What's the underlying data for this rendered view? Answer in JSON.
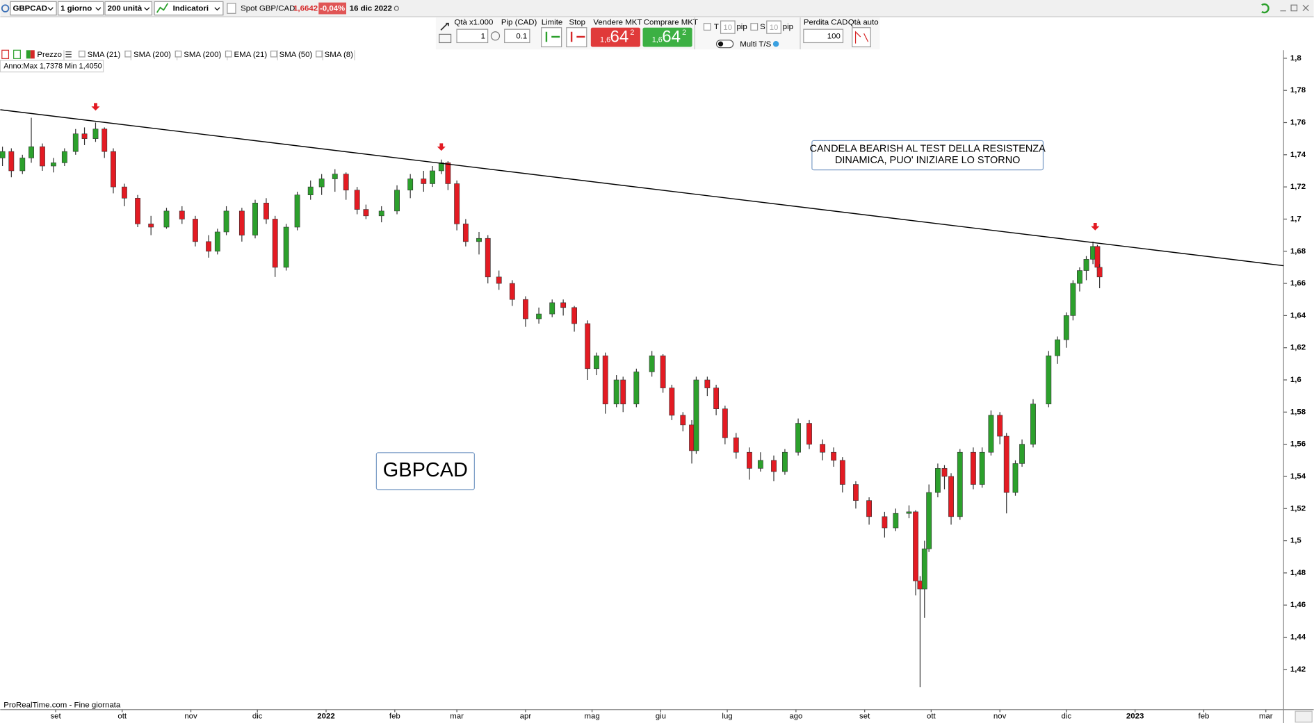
{
  "toolbar": {
    "symbol": "GBPCAD",
    "timeframe": "1 giorno",
    "units": "200 unità",
    "indicators": "Indicatori",
    "instrument": "Spot GBP/CAD",
    "price": "1,6642",
    "change": "-0,04%",
    "date": "16 dic 2022"
  },
  "order_panel": {
    "qty_label": "Qtà x1.000",
    "qty": "1",
    "pip_label": "Pip (CAD)",
    "pip": "0.1",
    "limit": "Limite",
    "stop": "Stop",
    "sell_label": "Vendere MKT",
    "buy_label": "Comprare MKT",
    "sell_price": {
      "prefix": "1,6",
      "big": "64",
      "sup": "2"
    },
    "buy_price": {
      "prefix": "1,6",
      "big": "64",
      "sup": "2"
    },
    "t": "T",
    "t_pips": "10",
    "t_unit": "pip",
    "s": "S",
    "s_pips": "10",
    "s_unit": "pip",
    "multi": "Multi T/S",
    "loss_label": "Perdita CAD",
    "loss": "100",
    "auto_qty": "Qtà auto"
  },
  "indicator_bar": [
    "Prezzo",
    "SMA (21)",
    "SMA (200)",
    "SMA (200)",
    "EMA (21)",
    "SMA (50)",
    "SMA (8)"
  ],
  "year_range": "Anno:Max 1,7378 Min 1,4050",
  "footer": "ProRealTime.com - Fine giornata",
  "chart_data": {
    "type": "candlestick",
    "title": "GBPCAD",
    "annotation": [
      "CANDELA BEARISH AL TEST DELLA RESISTENZA",
      "DINAMICA, PUO' INIZIARE LO STORNO"
    ],
    "up_color": "#2ca02c",
    "down_color": "#e31b23",
    "x": [
      -24,
      -20,
      -15,
      -11,
      -6,
      -1,
      4,
      9,
      13,
      18,
      22,
      26,
      31,
      37,
      43,
      50,
      57,
      63,
      69,
      73,
      77,
      84,
      90,
      95,
      99,
      104,
      109,
      115,
      120,
      126,
      131,
      136,
      140,
      147,
      154,
      160,
      166,
      170,
      174,
      177,
      181,
      185,
      191,
      195,
      200,
      206,
      212,
      218,
      224,
      229,
      234,
      240,
      244,
      248,
      253,
      256,
      262,
      269,
      274,
      278,
      283,
      287,
      289,
      294,
      298,
      302,
      307,
      313,
      318,
      324,
      329,
      335,
      340,
      346,
      351,
      355,
      361,
      367,
      374,
      379,
      385,
      388,
      390,
      392,
      394,
      398,
      401,
      404,
      408,
      414,
      418,
      422,
      426,
      429,
      433,
      436,
      441,
      448,
      452,
      456,
      459,
      462,
      465,
      468,
      470,
      471
    ],
    "open": [
      1.738,
      1.742,
      1.73,
      1.738,
      1.745,
      1.733,
      1.735,
      1.742,
      1.753,
      1.75,
      1.756,
      1.742,
      1.72,
      1.713,
      1.697,
      1.695,
      1.705,
      1.7,
      1.686,
      1.68,
      1.692,
      1.705,
      1.69,
      1.71,
      1.7,
      1.67,
      1.695,
      1.715,
      1.72,
      1.725,
      1.728,
      1.718,
      1.706,
      1.702,
      1.705,
      1.718,
      1.725,
      1.722,
      1.73,
      1.735,
      1.722,
      1.697,
      1.686,
      1.688,
      1.664,
      1.66,
      1.65,
      1.638,
      1.641,
      1.648,
      1.645,
      1.635,
      1.607,
      1.615,
      1.585,
      1.6,
      1.585,
      1.605,
      1.615,
      1.595,
      1.578,
      1.572,
      1.556,
      1.6,
      1.595,
      1.582,
      1.564,
      1.555,
      1.545,
      1.55,
      1.543,
      1.555,
      1.573,
      1.56,
      1.555,
      1.55,
      1.535,
      1.525,
      1.515,
      1.508,
      1.517,
      1.518,
      1.475,
      1.47,
      1.495,
      1.53,
      1.545,
      1.54,
      1.515,
      1.555,
      1.535,
      1.555,
      1.578,
      1.565,
      1.53,
      1.548,
      1.56,
      1.585,
      1.615,
      1.625,
      1.64,
      1.66,
      1.668,
      1.675,
      1.683,
      1.67
    ],
    "high": [
      1.745,
      1.744,
      1.74,
      1.763,
      1.747,
      1.738,
      1.744,
      1.756,
      1.757,
      1.76,
      1.757,
      1.744,
      1.722,
      1.715,
      1.702,
      1.707,
      1.708,
      1.702,
      1.69,
      1.694,
      1.708,
      1.707,
      1.712,
      1.713,
      1.702,
      1.697,
      1.717,
      1.724,
      1.728,
      1.731,
      1.729,
      1.72,
      1.709,
      1.708,
      1.721,
      1.728,
      1.73,
      1.733,
      1.737,
      1.736,
      1.724,
      1.7,
      1.692,
      1.69,
      1.668,
      1.662,
      1.652,
      1.645,
      1.65,
      1.65,
      1.646,
      1.637,
      1.617,
      1.617,
      1.603,
      1.602,
      1.607,
      1.618,
      1.616,
      1.597,
      1.58,
      1.575,
      1.602,
      1.602,
      1.597,
      1.584,
      1.567,
      1.558,
      1.555,
      1.553,
      1.557,
      1.576,
      1.575,
      1.563,
      1.558,
      1.552,
      1.537,
      1.527,
      1.518,
      1.52,
      1.522,
      1.519,
      1.478,
      1.5,
      1.535,
      1.548,
      1.547,
      1.542,
      1.557,
      1.558,
      1.558,
      1.581,
      1.58,
      1.567,
      1.55,
      1.563,
      1.588,
      1.618,
      1.627,
      1.642,
      1.662,
      1.67,
      1.677,
      1.686,
      1.684,
      1.672
    ],
    "low": [
      1.733,
      1.726,
      1.728,
      1.735,
      1.73,
      1.729,
      1.733,
      1.74,
      1.746,
      1.748,
      1.738,
      1.716,
      1.708,
      1.695,
      1.69,
      1.694,
      1.697,
      1.683,
      1.676,
      1.678,
      1.69,
      1.686,
      1.688,
      1.697,
      1.664,
      1.668,
      1.693,
      1.712,
      1.715,
      1.717,
      1.712,
      1.703,
      1.7,
      1.698,
      1.703,
      1.713,
      1.717,
      1.72,
      1.728,
      1.718,
      1.693,
      1.683,
      1.678,
      1.66,
      1.656,
      1.646,
      1.633,
      1.635,
      1.639,
      1.64,
      1.63,
      1.6,
      1.603,
      1.579,
      1.583,
      1.58,
      1.583,
      1.602,
      1.592,
      1.575,
      1.568,
      1.548,
      1.554,
      1.59,
      1.578,
      1.56,
      1.551,
      1.538,
      1.543,
      1.537,
      1.541,
      1.553,
      1.557,
      1.55,
      1.546,
      1.53,
      1.52,
      1.51,
      1.502,
      1.506,
      1.514,
      1.466,
      1.409,
      1.452,
      1.493,
      1.527,
      1.532,
      1.51,
      1.513,
      1.532,
      1.533,
      1.553,
      1.56,
      1.517,
      1.528,
      1.546,
      1.558,
      1.583,
      1.61,
      1.62,
      1.637,
      1.655,
      1.662,
      1.672,
      1.668,
      1.657
    ],
    "close": [
      1.742,
      1.73,
      1.738,
      1.745,
      1.733,
      1.735,
      1.742,
      1.753,
      1.75,
      1.756,
      1.742,
      1.72,
      1.713,
      1.697,
      1.695,
      1.705,
      1.7,
      1.686,
      1.68,
      1.692,
      1.705,
      1.69,
      1.71,
      1.7,
      1.67,
      1.695,
      1.715,
      1.72,
      1.725,
      1.728,
      1.718,
      1.706,
      1.702,
      1.705,
      1.718,
      1.725,
      1.722,
      1.73,
      1.735,
      1.722,
      1.697,
      1.686,
      1.688,
      1.664,
      1.66,
      1.65,
      1.638,
      1.641,
      1.648,
      1.645,
      1.635,
      1.607,
      1.615,
      1.585,
      1.6,
      1.585,
      1.605,
      1.615,
      1.595,
      1.578,
      1.572,
      1.556,
      1.6,
      1.595,
      1.582,
      1.564,
      1.555,
      1.545,
      1.55,
      1.543,
      1.555,
      1.573,
      1.56,
      1.555,
      1.55,
      1.535,
      1.525,
      1.515,
      1.508,
      1.517,
      1.518,
      1.475,
      1.47,
      1.495,
      1.53,
      1.545,
      1.54,
      1.515,
      1.555,
      1.535,
      1.555,
      1.578,
      1.565,
      1.53,
      1.548,
      1.56,
      1.585,
      1.615,
      1.625,
      1.64,
      1.66,
      1.668,
      1.675,
      1.683,
      1.67,
      1.664
    ],
    "trendline": {
      "x": [
        -25,
        554
      ],
      "y": [
        1.768,
        1.671
      ],
      "color": "#000000"
    },
    "markers": {
      "x": [
        18,
        174,
        469
      ],
      "y": [
        1.769,
        1.744,
        1.6945
      ],
      "color": "#e31b23"
    },
    "xlim": [
      -25,
      554
    ],
    "xticks": [
      {
        "value": 0,
        "label": "set"
      },
      {
        "value": 30,
        "label": "ott"
      },
      {
        "value": 61,
        "label": "nov"
      },
      {
        "value": 91,
        "label": "dic"
      },
      {
        "value": 122,
        "label": "2022"
      },
      {
        "value": 153,
        "label": "feb"
      },
      {
        "value": 181,
        "label": "mar"
      },
      {
        "value": 212,
        "label": "apr"
      },
      {
        "value": 242,
        "label": "mag"
      },
      {
        "value": 273,
        "label": "giu"
      },
      {
        "value": 303,
        "label": "lug"
      },
      {
        "value": 334,
        "label": "ago"
      },
      {
        "value": 365,
        "label": "set"
      },
      {
        "value": 395,
        "label": "ott"
      },
      {
        "value": 426,
        "label": "nov"
      },
      {
        "value": 456,
        "label": "dic"
      },
      {
        "value": 487,
        "label": "2023"
      },
      {
        "value": 518,
        "label": "feb"
      },
      {
        "value": 546,
        "label": "mar"
      }
    ],
    "ylim": [
      1.395,
      1.805
    ],
    "yticks": [
      {
        "value": 1.8,
        "label": "1,8"
      },
      {
        "value": 1.78,
        "label": "1,78"
      },
      {
        "value": 1.76,
        "label": "1,76"
      },
      {
        "value": 1.74,
        "label": "1,74"
      },
      {
        "value": 1.72,
        "label": "1,72"
      },
      {
        "value": 1.7,
        "label": "1,7"
      },
      {
        "value": 1.68,
        "label": "1,68"
      },
      {
        "value": 1.66,
        "label": "1,66"
      },
      {
        "value": 1.64,
        "label": "1,64"
      },
      {
        "value": 1.62,
        "label": "1,62"
      },
      {
        "value": 1.6,
        "label": "1,6"
      },
      {
        "value": 1.58,
        "label": "1,58"
      },
      {
        "value": 1.56,
        "label": "1,56"
      },
      {
        "value": 1.54,
        "label": "1,54"
      },
      {
        "value": 1.52,
        "label": "1,52"
      },
      {
        "value": 1.5,
        "label": "1,5"
      },
      {
        "value": 1.48,
        "label": "1,48"
      },
      {
        "value": 1.46,
        "label": "1,46"
      },
      {
        "value": 1.44,
        "label": "1,44"
      },
      {
        "value": 1.42,
        "label": "1,42"
      }
    ]
  }
}
